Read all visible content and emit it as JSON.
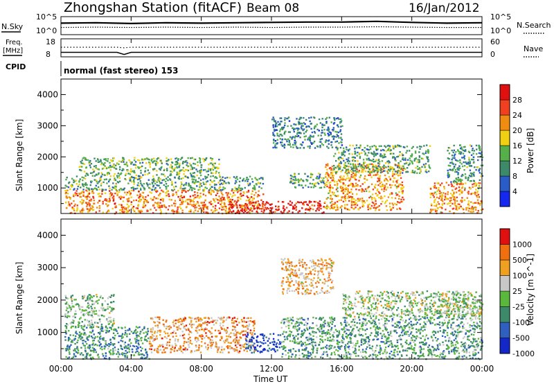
{
  "header": {
    "title": "Zhongshan Station (fitACF)",
    "beam": "Beam 08",
    "date": "16/Jan/2012"
  },
  "labels": {
    "n_sky": "N.Sky",
    "n_search": "N.Search",
    "freq": "Freq.",
    "freq_unit": "[MHz]",
    "nave": "Nave",
    "cpid": "CPID",
    "cpid_value": "normal (fast stereo) 153",
    "xlabel": "Time UT"
  },
  "chart_data": [
    {
      "type": "line",
      "panel": "noise",
      "left_ticks": [
        "10^5",
        "10^0"
      ],
      "right_ticks": [
        "10^5",
        "10^0"
      ],
      "x": [
        0,
        2,
        4,
        6,
        8,
        10,
        12,
        14,
        16,
        18,
        20,
        22,
        24
      ],
      "series": [
        {
          "name": "N.Sky",
          "values": [
            3.2,
            3.3,
            3.1,
            3.3,
            3.2,
            3.3,
            3.4,
            3.5,
            3.5,
            3.7,
            3.4,
            3.2,
            3.3
          ]
        },
        {
          "name": "N.Search",
          "values": [
            2.0,
            2.1,
            2.0,
            2.1,
            2.0,
            2.1,
            2.0,
            2.1,
            2.1,
            2.2,
            2.1,
            2.0,
            2.0
          ]
        }
      ]
    },
    {
      "type": "line",
      "panel": "frequency",
      "left_ticks": [
        "18",
        "8"
      ],
      "right_ticks": [
        "60",
        "0"
      ],
      "x": [
        0,
        2,
        3.2,
        3.6,
        4,
        6,
        8,
        10,
        12,
        14,
        16,
        18,
        20,
        22,
        24
      ],
      "series": [
        {
          "name": "Freq.",
          "values": [
            10.5,
            10.5,
            10.5,
            9.3,
            10.5,
            10.5,
            10.5,
            10.5,
            10.5,
            10.5,
            10.5,
            10.5,
            10.5,
            10.5,
            10.5
          ]
        },
        {
          "name": "Nave",
          "values": [
            32,
            32,
            32,
            30,
            32,
            32,
            32,
            32,
            32,
            32,
            32,
            32,
            32,
            32,
            32
          ]
        }
      ]
    },
    {
      "type": "heatmap",
      "panel": "power",
      "ylabel": "Slant Range [km]",
      "ylim": [
        180,
        4500
      ],
      "xlim": [
        0,
        24
      ],
      "yticks": [
        "1000",
        "2000",
        "3000",
        "4000"
      ],
      "xticks": [
        "00:00",
        "04:00",
        "08:00",
        "12:00",
        "16:00",
        "20:00",
        "00:00"
      ],
      "colorbar_label": "Power [dB]",
      "colorbar_ticks": [
        "4",
        "8",
        "12",
        "16",
        "20",
        "24",
        "28"
      ],
      "colorbar_colors": [
        "#1428f0",
        "#2a5cc8",
        "#3c8a6a",
        "#56b04a",
        "#f0d010",
        "#f08c10",
        "#f04020",
        "#e01010"
      ],
      "regions": [
        {
          "t0": 0.2,
          "t1": 11.5,
          "r0": 200,
          "r1": 950,
          "level": 0.75
        },
        {
          "t0": 0.2,
          "t1": 11.5,
          "r0": 950,
          "r1": 1400,
          "level": 0.35
        },
        {
          "t0": 1.0,
          "t1": 9.0,
          "r0": 1400,
          "r1": 2000,
          "level": 0.4
        },
        {
          "t0": 9.5,
          "t1": 15.0,
          "r0": 200,
          "r1": 600,
          "level": 0.95
        },
        {
          "t0": 13.0,
          "t1": 15.0,
          "r0": 1000,
          "r1": 1500,
          "level": 0.35
        },
        {
          "t0": 15.0,
          "t1": 19.5,
          "r0": 300,
          "r1": 1800,
          "level": 0.7
        },
        {
          "t0": 15.5,
          "t1": 21.0,
          "r0": 1500,
          "r1": 2400,
          "level": 0.35
        },
        {
          "t0": 12.0,
          "t1": 16.0,
          "r0": 2300,
          "r1": 3300,
          "level": 0.25
        },
        {
          "t0": 21.0,
          "t1": 24.0,
          "r0": 200,
          "r1": 1200,
          "level": 0.7
        },
        {
          "t0": 22.0,
          "t1": 24.0,
          "r0": 1200,
          "r1": 2400,
          "level": 0.3
        }
      ]
    },
    {
      "type": "heatmap",
      "panel": "velocity",
      "ylabel": "Slant Range [km]",
      "ylim": [
        180,
        4500
      ],
      "xlim": [
        0,
        24
      ],
      "yticks": [
        "1000",
        "2000",
        "3000",
        "4000"
      ],
      "xticks": [
        "00:00",
        "04:00",
        "08:00",
        "12:00",
        "16:00",
        "20:00",
        "00:00"
      ],
      "colorbar_label": "Velocity [m s^-1]",
      "colorbar_ticks": [
        "1000",
        "500",
        "100",
        "25",
        "-25",
        "-100",
        "-500",
        "-1000"
      ],
      "colorbar_colors": [
        "#1428c8",
        "#2f60c0",
        "#3c8a6a",
        "#5ab83c",
        "#c8c8c8",
        "#f0a020",
        "#f07010",
        "#e01010"
      ],
      "regions": [
        {
          "t0": 0.2,
          "t1": 5.0,
          "r0": 200,
          "r1": 1200,
          "level": 0.3
        },
        {
          "t0": 0.2,
          "t1": 3.0,
          "r0": 1200,
          "r1": 2200,
          "level": 0.45
        },
        {
          "t0": 5.0,
          "t1": 11.0,
          "r0": 400,
          "r1": 1500,
          "level": 0.75
        },
        {
          "t0": 10.5,
          "t1": 12.5,
          "r0": 400,
          "r1": 1000,
          "level": 0.1
        },
        {
          "t0": 12.5,
          "t1": 16.0,
          "r0": 200,
          "r1": 1500,
          "level": 0.35
        },
        {
          "t0": 12.5,
          "t1": 15.5,
          "r0": 2200,
          "r1": 3300,
          "level": 0.7
        },
        {
          "t0": 16.0,
          "t1": 24.0,
          "r0": 200,
          "r1": 1500,
          "level": 0.35
        },
        {
          "t0": 16.0,
          "t1": 24.0,
          "r0": 1500,
          "r1": 2300,
          "level": 0.5
        },
        {
          "t0": 21.5,
          "t1": 24.0,
          "r0": 1500,
          "r1": 2200,
          "level": 0.5
        }
      ]
    }
  ]
}
